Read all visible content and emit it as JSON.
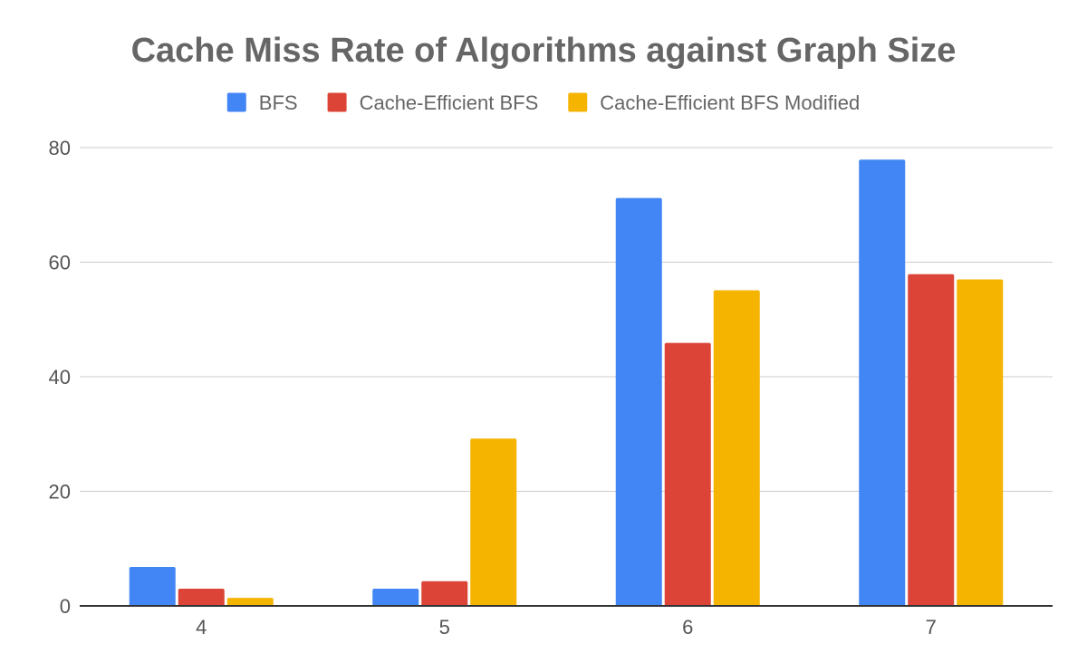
{
  "chart_data": {
    "type": "bar",
    "title": "Cache Miss Rate of Algorithms against Graph Size",
    "xlabel": "",
    "ylabel": "",
    "categories": [
      "4",
      "5",
      "6",
      "7"
    ],
    "series": [
      {
        "name": "BFS",
        "color": "#4285f4",
        "values": [
          6.8,
          3.0,
          71.2,
          77.9
        ]
      },
      {
        "name": "Cache-Efficient BFS",
        "color": "#db4437",
        "values": [
          3.0,
          4.3,
          45.9,
          57.9
        ]
      },
      {
        "name": "Cache-Efficient BFS Modified",
        "color": "#f4b400",
        "values": [
          1.4,
          29.2,
          55.1,
          57.0
        ]
      }
    ],
    "ylim": [
      0,
      80
    ],
    "yticks": [
      0,
      20,
      40,
      60,
      80
    ],
    "grid": true,
    "legend_position": "top-center"
  }
}
